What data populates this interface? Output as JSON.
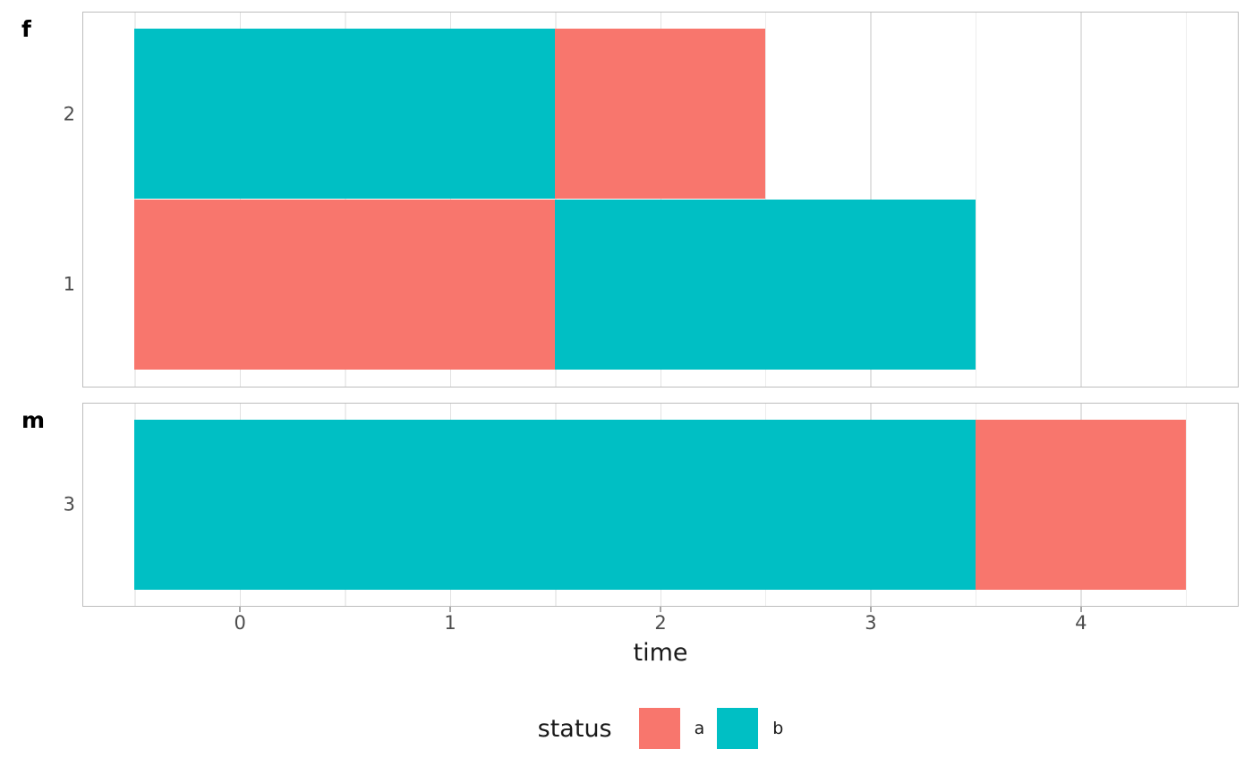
{
  "chart_data": {
    "type": "bar",
    "orientation": "horizontal",
    "stacked": true,
    "title": "",
    "xlabel": "time",
    "ylabel": "",
    "x_ticks": [
      0,
      1,
      2,
      3,
      4
    ],
    "x_minor_gridlines": [
      -0.5,
      0.5,
      1.5,
      2.5,
      3.5,
      4.5
    ],
    "x_domain": [
      -0.75,
      4.75
    ],
    "grid": true,
    "legend": {
      "title": "status",
      "position": "bottom",
      "items": [
        {
          "label": "a",
          "color": "#F8766D"
        },
        {
          "label": "b",
          "color": "#00BFC4"
        }
      ]
    },
    "facets": [
      {
        "label": "f",
        "rows": [
          {
            "category": "2",
            "segments": [
              {
                "status": "b",
                "start": -0.5,
                "end": 1.5
              },
              {
                "status": "a",
                "start": 1.5,
                "end": 2.5
              }
            ]
          },
          {
            "category": "1",
            "segments": [
              {
                "status": "a",
                "start": -0.5,
                "end": 1.5
              },
              {
                "status": "b",
                "start": 1.5,
                "end": 3.5
              }
            ]
          }
        ]
      },
      {
        "label": "m",
        "rows": [
          {
            "category": "3",
            "segments": [
              {
                "status": "b",
                "start": -0.5,
                "end": 3.5
              },
              {
                "status": "a",
                "start": 3.5,
                "end": 4.5
              }
            ]
          }
        ]
      }
    ]
  }
}
